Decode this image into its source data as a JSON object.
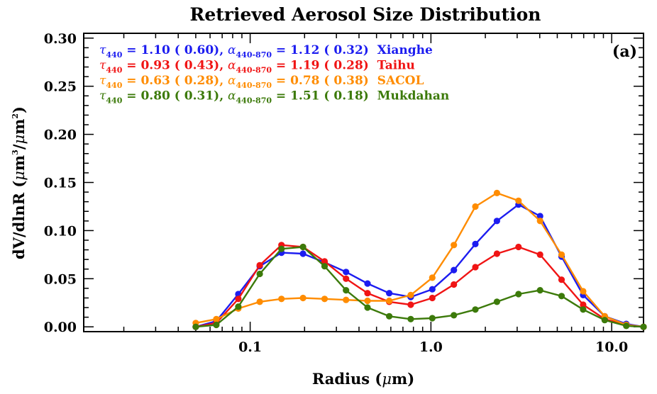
{
  "chart_data": {
    "type": "line",
    "title": "Retrieved Aerosol Size Distribution",
    "panel_label": "(a)",
    "xlabel": {
      "main": "Radius (",
      "symbol": "μ",
      "unit": "m)"
    },
    "ylabel": {
      "main": "dV/dlnR (",
      "mu1": "μ",
      "m3": "m",
      "exp3": "3",
      "slash": "/",
      "mu2": "μ",
      "m2": "m",
      "exp2": "2",
      "close": ")"
    },
    "x_scale": "log",
    "xlim": [
      0.012,
      15
    ],
    "ylim": [
      -0.005,
      0.305
    ],
    "x_tick_labels": [
      {
        "value": 0.1,
        "label": "0.1"
      },
      {
        "value": 1.0,
        "label": "1.0"
      },
      {
        "value": 10.0,
        "label": "10.0"
      }
    ],
    "y_tick_labels": [
      {
        "value": 0.0,
        "label": "0.00"
      },
      {
        "value": 0.05,
        "label": "0.05"
      },
      {
        "value": 0.1,
        "label": "0.10"
      },
      {
        "value": 0.15,
        "label": "0.15"
      },
      {
        "value": 0.2,
        "label": "0.20"
      },
      {
        "value": 0.25,
        "label": "0.25"
      },
      {
        "value": 0.3,
        "label": "0.30"
      }
    ],
    "grid": false,
    "legend_position": "top-left",
    "x": [
      0.05,
      0.065,
      0.086,
      0.113,
      0.149,
      0.196,
      0.258,
      0.339,
      0.446,
      0.588,
      0.773,
      1.018,
      1.339,
      1.762,
      2.319,
      3.051,
      4.015,
      5.283,
      6.952,
      9.148,
      12.04,
      15.0
    ],
    "series": [
      {
        "name": "Xianghe",
        "color": "#1c1cf0",
        "legend": {
          "tau": "τ",
          "tau_sub": "440",
          "tau_val": " = 1.10 ( 0.60), ",
          "alpha": "α",
          "alpha_sub": "440-870",
          "alpha_val": " = 1.12 ( 0.32)",
          "site": "Xianghe"
        },
        "values": [
          0.0,
          0.006,
          0.034,
          0.063,
          0.077,
          0.076,
          0.067,
          0.057,
          0.045,
          0.035,
          0.031,
          0.039,
          0.059,
          0.086,
          0.11,
          0.127,
          0.115,
          0.073,
          0.033,
          0.011,
          0.003,
          0.0
        ]
      },
      {
        "name": "Taihu",
        "color": "#f01414",
        "legend": {
          "tau": "τ",
          "tau_sub": "440",
          "tau_val": " = 0.93 ( 0.43), ",
          "alpha": "α",
          "alpha_sub": "440-870",
          "alpha_val": " = 1.19 ( 0.28)",
          "site": "Taihu"
        },
        "values": [
          0.0,
          0.004,
          0.029,
          0.064,
          0.085,
          0.083,
          0.068,
          0.05,
          0.035,
          0.026,
          0.023,
          0.03,
          0.044,
          0.062,
          0.076,
          0.083,
          0.075,
          0.049,
          0.023,
          0.008,
          0.002,
          0.0
        ]
      },
      {
        "name": "SACOL",
        "color": "#ff8c00",
        "legend": {
          "tau": "τ",
          "tau_sub": "440",
          "tau_val": " = 0.63 ( 0.28), ",
          "alpha": "α",
          "alpha_sub": "440-870",
          "alpha_val": " = 0.78 ( 0.38)",
          "site": "SACOL"
        },
        "values": [
          0.004,
          0.008,
          0.019,
          0.026,
          0.029,
          0.03,
          0.029,
          0.028,
          0.027,
          0.027,
          0.033,
          0.051,
          0.085,
          0.125,
          0.139,
          0.131,
          0.11,
          0.075,
          0.037,
          0.011,
          0.002,
          0.0
        ]
      },
      {
        "name": "Mukdahan",
        "color": "#3c7a0a",
        "legend": {
          "tau": "τ",
          "tau_sub": "440",
          "tau_val": " = 0.80 ( 0.31), ",
          "alpha": "α",
          "alpha_sub": "440-870",
          "alpha_val": " = 1.51 ( 0.18)",
          "site": "Mukdahan"
        },
        "values": [
          0.0,
          0.002,
          0.021,
          0.055,
          0.081,
          0.083,
          0.063,
          0.038,
          0.02,
          0.011,
          0.008,
          0.009,
          0.012,
          0.018,
          0.026,
          0.034,
          0.038,
          0.032,
          0.018,
          0.007,
          0.001,
          0.0
        ]
      }
    ]
  }
}
